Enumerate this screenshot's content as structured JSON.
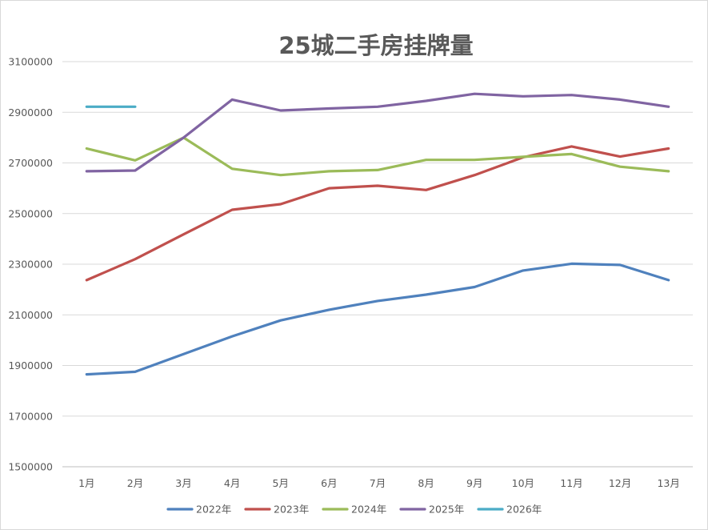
{
  "chart_data": {
    "type": "line",
    "title": "25城二手房挂牌量",
    "xlabel": "",
    "ylabel": "",
    "categories": [
      "1月",
      "2月",
      "3月",
      "4月",
      "5月",
      "6月",
      "7月",
      "8月",
      "9月",
      "10月",
      "11月",
      "12月",
      "13月"
    ],
    "ylim": [
      1500000,
      3100000
    ],
    "yticks": [
      1500000,
      1700000,
      1900000,
      2100000,
      2300000,
      2500000,
      2700000,
      2900000,
      3100000
    ],
    "grid": true,
    "legend_position": "bottom",
    "series": [
      {
        "name": "2022年",
        "color": "#4f81bd",
        "values": [
          1865000,
          1875000,
          1945000,
          2015000,
          2078000,
          2120000,
          2155000,
          2180000,
          2210000,
          2275000,
          2302000,
          2297000,
          2237000
        ]
      },
      {
        "name": "2023年",
        "color": "#c0504d",
        "values": [
          2237000,
          2320000,
          2418000,
          2515000,
          2537000,
          2600000,
          2610000,
          2593000,
          2652000,
          2722000,
          2765000,
          2725000,
          2757000
        ]
      },
      {
        "name": "2024年",
        "color": "#9bbb59",
        "values": [
          2757000,
          2710000,
          2800000,
          2677000,
          2652000,
          2667000,
          2672000,
          2712000,
          2712000,
          2724000,
          2735000,
          2685000,
          2667000
        ]
      },
      {
        "name": "2025年",
        "color": "#8064a2",
        "values": [
          2667000,
          2670000,
          2800000,
          2950000,
          2907000,
          2915000,
          2922000,
          2945000,
          2973000,
          2963000,
          2968000,
          2950000,
          2922000
        ]
      },
      {
        "name": "2026年",
        "color": "#4bacc6",
        "values": [
          2922000,
          2922000,
          null,
          null,
          null,
          null,
          null,
          null,
          null,
          null,
          null,
          null,
          null
        ]
      }
    ]
  }
}
